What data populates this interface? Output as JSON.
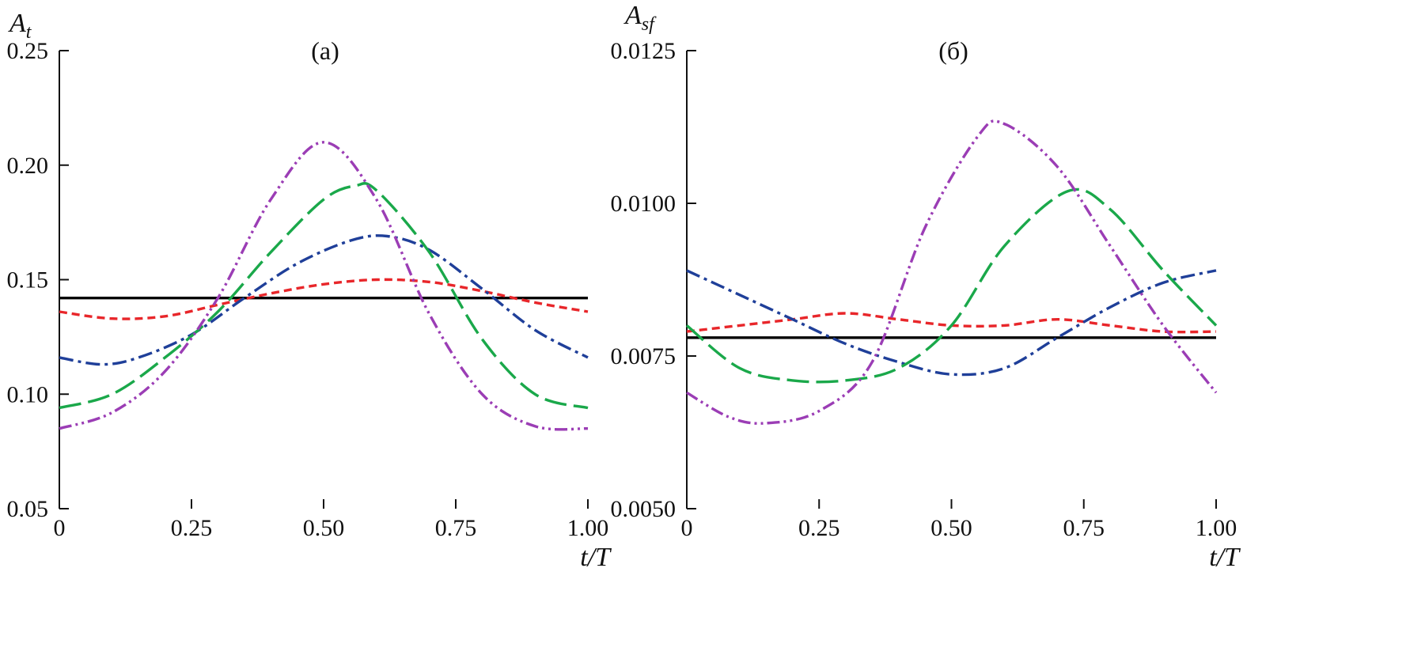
{
  "chart_data": [
    {
      "type": "line",
      "panel_label": "(a)",
      "ylabel_main": "A",
      "ylabel_sub": "t",
      "xlabel": "t/T",
      "xlim": [
        0,
        1
      ],
      "ylim": [
        0.05,
        0.25
      ],
      "xticks": [
        0,
        0.25,
        0.5,
        0.75,
        1.0
      ],
      "xtick_labels": [
        "0",
        "0.25",
        "0.50",
        "0.75",
        "1.00"
      ],
      "yticks": [
        0.05,
        0.1,
        0.15,
        0.2,
        0.25
      ],
      "ytick_labels": [
        "0.05",
        "0.10",
        "0.15",
        "0.20",
        "0.25"
      ],
      "grid": false,
      "series": [
        {
          "color": "#000000",
          "dash": "solid",
          "x": [
            0,
            0.5,
            1.0
          ],
          "y": [
            0.142,
            0.142,
            0.142
          ]
        },
        {
          "color": "#e8262a",
          "dash": "short-dash",
          "x": [
            0,
            0.1,
            0.2,
            0.3,
            0.4,
            0.5,
            0.6,
            0.7,
            0.8,
            0.9,
            1.0
          ],
          "y": [
            0.136,
            0.133,
            0.134,
            0.139,
            0.144,
            0.148,
            0.15,
            0.149,
            0.145,
            0.14,
            0.136
          ]
        },
        {
          "color": "#1f3f99",
          "dash": "dash-dot",
          "x": [
            0,
            0.08,
            0.15,
            0.25,
            0.35,
            0.45,
            0.55,
            0.62,
            0.7,
            0.8,
            0.9,
            1.0
          ],
          "y": [
            0.116,
            0.113,
            0.116,
            0.126,
            0.142,
            0.157,
            0.167,
            0.169,
            0.163,
            0.146,
            0.128,
            0.116
          ]
        },
        {
          "color": "#1aa84a",
          "dash": "long-dash",
          "x": [
            0,
            0.1,
            0.2,
            0.3,
            0.4,
            0.5,
            0.56,
            0.6,
            0.7,
            0.8,
            0.9,
            1.0
          ],
          "y": [
            0.094,
            0.1,
            0.116,
            0.136,
            0.162,
            0.185,
            0.191,
            0.189,
            0.162,
            0.124,
            0.1,
            0.094
          ]
        },
        {
          "color": "#9b3db5",
          "dash": "dash-dot-dot",
          "x": [
            0,
            0.1,
            0.2,
            0.3,
            0.4,
            0.5,
            0.6,
            0.7,
            0.8,
            0.9,
            1.0
          ],
          "y": [
            0.085,
            0.092,
            0.11,
            0.142,
            0.185,
            0.21,
            0.185,
            0.135,
            0.1,
            0.086,
            0.085
          ]
        }
      ]
    },
    {
      "type": "line",
      "panel_label": "(б)",
      "ylabel_main": "A",
      "ylabel_sub": "sf",
      "xlabel": "t/T",
      "xlim": [
        0,
        1
      ],
      "ylim": [
        0.005,
        0.0125
      ],
      "xticks": [
        0,
        0.25,
        0.5,
        0.75,
        1.0
      ],
      "xtick_labels": [
        "0",
        "0.25",
        "0.50",
        "0.75",
        "1.00"
      ],
      "yticks": [
        0.005,
        0.0075,
        0.01,
        0.0125
      ],
      "ytick_labels": [
        "0.0050",
        "0.0075",
        "0.0100",
        "0.0125"
      ],
      "grid": false,
      "series": [
        {
          "color": "#000000",
          "dash": "solid",
          "x": [
            0,
            0.5,
            1.0
          ],
          "y": [
            0.0078,
            0.0078,
            0.0078
          ]
        },
        {
          "color": "#e8262a",
          "dash": "short-dash",
          "x": [
            0,
            0.1,
            0.2,
            0.3,
            0.4,
            0.5,
            0.6,
            0.7,
            0.8,
            0.9,
            1.0
          ],
          "y": [
            0.0079,
            0.008,
            0.0081,
            0.0082,
            0.0081,
            0.008,
            0.008,
            0.0081,
            0.008,
            0.0079,
            0.0079
          ]
        },
        {
          "color": "#1f3f99",
          "dash": "dash-dot",
          "x": [
            0,
            0.1,
            0.2,
            0.3,
            0.4,
            0.5,
            0.6,
            0.7,
            0.8,
            0.9,
            1.0
          ],
          "y": [
            0.0089,
            0.0085,
            0.0081,
            0.0077,
            0.0074,
            0.0072,
            0.0073,
            0.0078,
            0.0083,
            0.0087,
            0.0089
          ]
        },
        {
          "color": "#1aa84a",
          "dash": "long-dash",
          "x": [
            0,
            0.1,
            0.2,
            0.3,
            0.4,
            0.5,
            0.6,
            0.72,
            0.8,
            0.9,
            1.0
          ],
          "y": [
            0.008,
            0.0073,
            0.0071,
            0.0071,
            0.0073,
            0.008,
            0.0093,
            0.0102,
            0.0099,
            0.0089,
            0.008
          ]
        },
        {
          "color": "#9b3db5",
          "dash": "dash-dot-dot",
          "x": [
            0,
            0.08,
            0.15,
            0.25,
            0.35,
            0.45,
            0.55,
            0.6,
            0.7,
            0.8,
            0.9,
            1.0
          ],
          "y": [
            0.0069,
            0.0065,
            0.0064,
            0.0066,
            0.0074,
            0.0096,
            0.0111,
            0.0113,
            0.0106,
            0.0093,
            0.008,
            0.0069
          ]
        }
      ]
    }
  ]
}
